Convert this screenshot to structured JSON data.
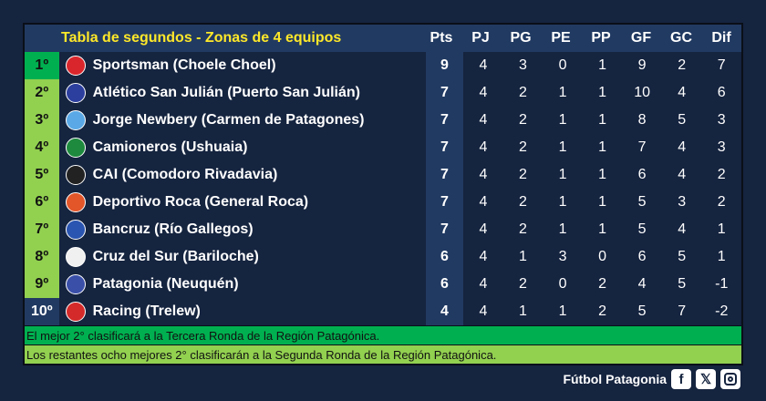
{
  "title": "Tabla de segundos - Zonas de 4 equipos",
  "columns": [
    "Pts",
    "PJ",
    "PG",
    "PE",
    "PP",
    "GF",
    "GC",
    "Dif"
  ],
  "colors": {
    "first": "#00b050",
    "qualify": "#92d050",
    "last": "#213a62"
  },
  "rows": [
    {
      "rank": "1º",
      "team": "Sportsman (Choele Choel)",
      "logo": "#d9262c",
      "stats": [
        "9",
        "4",
        "3",
        "0",
        "1",
        "9",
        "2",
        "7"
      ]
    },
    {
      "rank": "2º",
      "team": "Atlético San Julián (Puerto San Julián)",
      "logo": "#2c3f9e",
      "stats": [
        "7",
        "4",
        "2",
        "1",
        "1",
        "10",
        "4",
        "6"
      ]
    },
    {
      "rank": "3º",
      "team": "Jorge Newbery (Carmen de Patagones)",
      "logo": "#5aa9e6",
      "stats": [
        "7",
        "4",
        "2",
        "1",
        "1",
        "8",
        "5",
        "3"
      ]
    },
    {
      "rank": "4º",
      "team": "Camioneros (Ushuaia)",
      "logo": "#1e8a3e",
      "stats": [
        "7",
        "4",
        "2",
        "1",
        "1",
        "7",
        "4",
        "3"
      ]
    },
    {
      "rank": "5º",
      "team": "CAI (Comodoro Rivadavia)",
      "logo": "#222222",
      "stats": [
        "7",
        "4",
        "2",
        "1",
        "1",
        "6",
        "4",
        "2"
      ]
    },
    {
      "rank": "6º",
      "team": "Deportivo Roca (General Roca)",
      "logo": "#e2562a",
      "stats": [
        "7",
        "4",
        "2",
        "1",
        "1",
        "5",
        "3",
        "2"
      ]
    },
    {
      "rank": "7º",
      "team": "Bancruz (Río Gallegos)",
      "logo": "#2a55b0",
      "stats": [
        "7",
        "4",
        "2",
        "1",
        "1",
        "5",
        "4",
        "1"
      ]
    },
    {
      "rank": "8º",
      "team": "Cruz del Sur (Bariloche)",
      "logo": "#f0f0f0",
      "stats": [
        "6",
        "4",
        "1",
        "3",
        "0",
        "6",
        "5",
        "1"
      ]
    },
    {
      "rank": "9º",
      "team": "Patagonia (Neuquén)",
      "logo": "#3a4fa8",
      "stats": [
        "6",
        "4",
        "2",
        "0",
        "2",
        "4",
        "5",
        "-1"
      ]
    },
    {
      "rank": "10º",
      "team": "Racing (Trelew)",
      "logo": "#d42a2a",
      "stats": [
        "4",
        "4",
        "1",
        "1",
        "2",
        "5",
        "7",
        "-2"
      ]
    }
  ],
  "notes": [
    "El mejor 2° clasificará a la Tercera Ronda de la Región Patagónica.",
    "Los restantes ocho mejores 2° clasificarán a la Segunda Ronda de la Región Patagónica."
  ],
  "footer": {
    "brand": "Fútbol Patagonia",
    "icons": [
      "facebook-icon",
      "x-icon",
      "instagram-icon"
    ]
  }
}
